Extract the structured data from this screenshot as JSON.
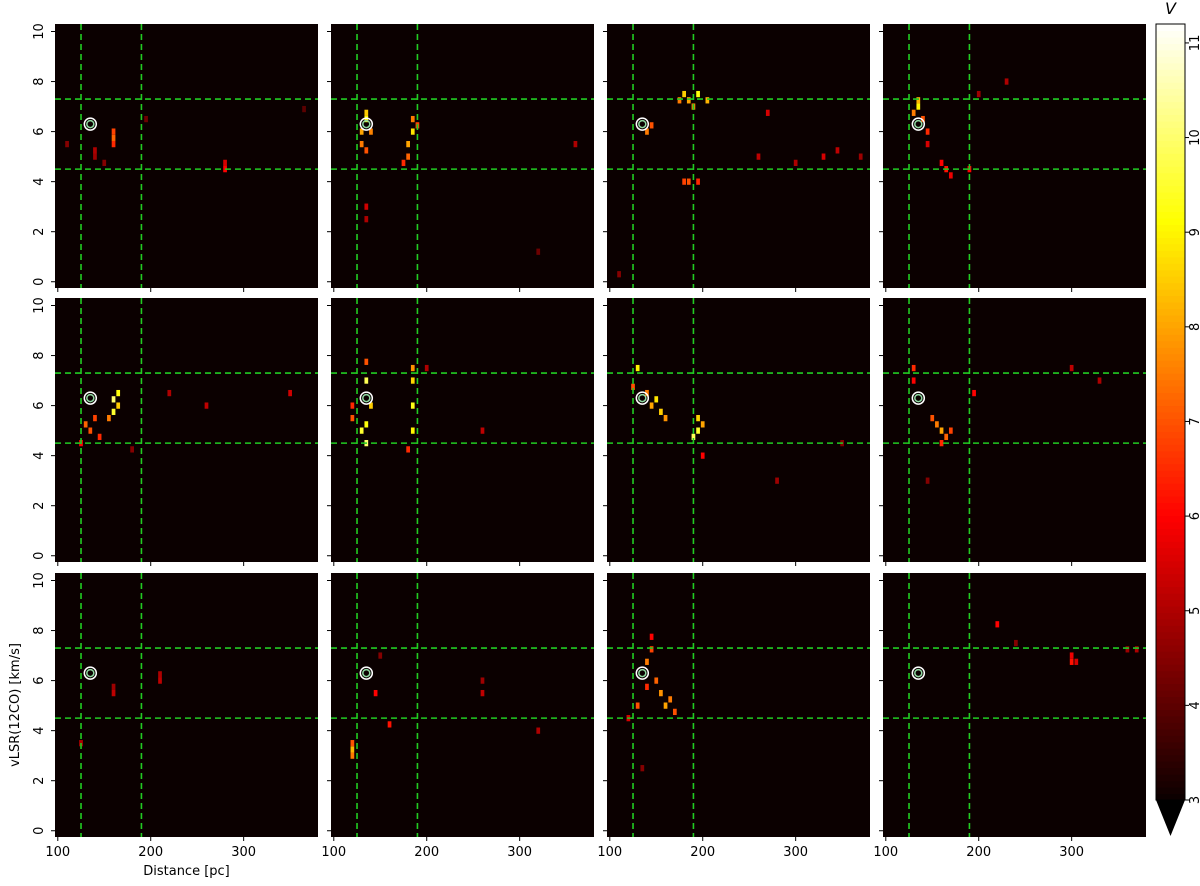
{
  "chart_data": [
    {
      "type": "heatmap",
      "xlim": [
        97,
        380
      ],
      "ylim": [
        -0.25,
        10.3
      ],
      "xticks": [
        100,
        200,
        300
      ],
      "yticks": [
        0,
        2,
        4,
        6,
        8,
        10
      ],
      "vlines": [
        125,
        190
      ],
      "hlines": [
        4.5,
        7.3
      ],
      "line_color": "#22cc22",
      "marker": {
        "x": 135,
        "y": 6.3
      },
      "cells": {
        "x": [
          160,
          160,
          160,
          140,
          140,
          280,
          280,
          110,
          365,
          195,
          150
        ],
        "y": [
          5.5,
          5.75,
          6.0,
          5.0,
          5.25,
          4.5,
          4.75,
          5.5,
          6.9,
          6.5,
          4.75
        ],
        "values": [
          6.5,
          7.2,
          6.8,
          4.8,
          5.0,
          6.0,
          5.5,
          4.5,
          4.0,
          4.2,
          4.5
        ]
      }
    },
    {
      "type": "heatmap",
      "xlim": [
        97,
        380
      ],
      "ylim": [
        -0.25,
        10.3
      ],
      "xticks": [
        100,
        200,
        300
      ],
      "yticks": [
        0,
        2,
        4,
        6,
        8,
        10
      ],
      "vlines": [
        125,
        190
      ],
      "hlines": [
        4.5,
        7.3
      ],
      "line_color": "#22cc22",
      "marker": {
        "x": 135,
        "y": 6.3
      },
      "cells": {
        "x": [
          130,
          130,
          135,
          135,
          135,
          140,
          180,
          180,
          185,
          185,
          175,
          190,
          135,
          135,
          360,
          320
        ],
        "y": [
          5.5,
          6.0,
          6.5,
          6.75,
          5.25,
          6.0,
          5.0,
          5.5,
          6.0,
          6.5,
          4.75,
          6.25,
          2.5,
          3.0,
          5.5,
          1.2
        ],
        "values": [
          7.5,
          8.0,
          9.2,
          8.5,
          7.0,
          7.6,
          7.2,
          8.0,
          8.8,
          7.5,
          6.5,
          6.8,
          5.0,
          5.4,
          5.0,
          4.2
        ]
      }
    },
    {
      "type": "heatmap",
      "xlim": [
        97,
        380
      ],
      "ylim": [
        -0.25,
        10.3
      ],
      "xticks": [
        100,
        200,
        300
      ],
      "yticks": [
        0,
        2,
        4,
        6,
        8,
        10
      ],
      "vlines": [
        125,
        190
      ],
      "hlines": [
        4.5,
        7.3
      ],
      "line_color": "#22cc22",
      "marker": {
        "x": 135,
        "y": 6.3
      },
      "cells": {
        "x": [
          175,
          180,
          185,
          195,
          205,
          190,
          140,
          145,
          180,
          185,
          195,
          260,
          300,
          330,
          345,
          370,
          270,
          110
        ],
        "y": [
          7.25,
          7.5,
          7.25,
          7.5,
          7.25,
          7.0,
          6.0,
          6.25,
          4.0,
          4.0,
          4.0,
          5.0,
          4.75,
          5.0,
          5.25,
          5.0,
          6.75,
          0.3
        ],
        "values": [
          7.5,
          8.5,
          8.0,
          9.2,
          8.2,
          7.5,
          7.5,
          7.0,
          6.8,
          7.0,
          6.5,
          5.2,
          5.0,
          5.5,
          5.2,
          4.8,
          5.5,
          4.5
        ]
      }
    },
    {
      "type": "heatmap",
      "xlim": [
        97,
        380
      ],
      "ylim": [
        -0.25,
        10.3
      ],
      "xticks": [
        100,
        200,
        300
      ],
      "yticks": [
        0,
        2,
        4,
        6,
        8,
        10
      ],
      "vlines": [
        125,
        190
      ],
      "hlines": [
        4.5,
        7.3
      ],
      "line_color": "#22cc22",
      "marker": {
        "x": 135,
        "y": 6.3
      },
      "cells": {
        "x": [
          130,
          135,
          135,
          140,
          145,
          160,
          165,
          170,
          190,
          230,
          200,
          145
        ],
        "y": [
          6.75,
          7.0,
          7.25,
          6.5,
          6.0,
          4.75,
          4.5,
          4.25,
          4.5,
          8.0,
          7.5,
          5.5
        ],
        "values": [
          7.5,
          9.0,
          8.2,
          7.0,
          6.5,
          6.0,
          6.2,
          5.8,
          6.0,
          5.0,
          4.8,
          5.5
        ]
      }
    },
    {
      "type": "heatmap",
      "xlim": [
        97,
        380
      ],
      "ylim": [
        -0.25,
        10.3
      ],
      "xticks": [
        100,
        200,
        300
      ],
      "yticks": [
        0,
        2,
        4,
        6,
        8,
        10
      ],
      "vlines": [
        125,
        190
      ],
      "hlines": [
        4.5,
        7.3
      ],
      "line_color": "#22cc22",
      "marker": {
        "x": 135,
        "y": 6.3
      },
      "cells": {
        "x": [
          160,
          160,
          165,
          165,
          155,
          135,
          140,
          145,
          130,
          125,
          220,
          260,
          350,
          180
        ],
        "y": [
          5.75,
          6.25,
          6.5,
          6.0,
          5.5,
          5.0,
          5.5,
          4.75,
          5.25,
          4.5,
          6.5,
          6.0,
          6.5,
          4.25
        ],
        "values": [
          9.5,
          10.0,
          9.2,
          8.5,
          7.5,
          7.0,
          6.8,
          6.5,
          7.2,
          6.0,
          5.0,
          5.2,
          5.4,
          4.5
        ]
      }
    },
    {
      "type": "heatmap",
      "xlim": [
        97,
        380
      ],
      "ylim": [
        -0.25,
        10.3
      ],
      "xticks": [
        100,
        200,
        300
      ],
      "yticks": [
        0,
        2,
        4,
        6,
        8,
        10
      ],
      "vlines": [
        125,
        190
      ],
      "hlines": [
        4.5,
        7.3
      ],
      "line_color": "#22cc22",
      "marker": {
        "x": 135,
        "y": 6.3
      },
      "cells": {
        "x": [
          130,
          135,
          135,
          135,
          140,
          135,
          185,
          185,
          185,
          180,
          185,
          120,
          120,
          260,
          200
        ],
        "y": [
          5.0,
          4.5,
          5.25,
          7.0,
          6.0,
          7.75,
          5.0,
          6.0,
          7.0,
          4.25,
          7.5,
          5.5,
          6.0,
          5.0,
          7.5
        ],
        "values": [
          9.5,
          10.0,
          9.2,
          9.8,
          8.5,
          7.0,
          9.0,
          9.3,
          8.6,
          6.5,
          7.8,
          7.0,
          6.5,
          5.2,
          5.0
        ]
      }
    },
    {
      "type": "heatmap",
      "xlim": [
        97,
        380
      ],
      "ylim": [
        -0.25,
        10.3
      ],
      "xticks": [
        100,
        200,
        300
      ],
      "yticks": [
        0,
        2,
        4,
        6,
        8,
        10
      ],
      "vlines": [
        125,
        190
      ],
      "hlines": [
        4.5,
        7.3
      ],
      "line_color": "#22cc22",
      "marker": {
        "x": 135,
        "y": 6.3
      },
      "cells": {
        "x": [
          145,
          150,
          155,
          160,
          190,
          195,
          195,
          200,
          130,
          125,
          140,
          200,
          280,
          350
        ],
        "y": [
          6.0,
          6.25,
          5.75,
          5.5,
          4.75,
          5.0,
          5.5,
          5.25,
          7.5,
          6.75,
          6.5,
          4.0,
          3.0,
          4.5
        ],
        "values": [
          8.0,
          8.8,
          8.5,
          7.8,
          9.8,
          9.5,
          8.6,
          8.0,
          9.0,
          7.0,
          7.5,
          6.0,
          4.8,
          4.5
        ]
      }
    },
    {
      "type": "heatmap",
      "xlim": [
        97,
        380
      ],
      "ylim": [
        -0.25,
        10.3
      ],
      "xticks": [
        100,
        200,
        300
      ],
      "yticks": [
        0,
        2,
        4,
        6,
        8,
        10
      ],
      "vlines": [
        125,
        190
      ],
      "hlines": [
        4.5,
        7.3
      ],
      "line_color": "#22cc22",
      "marker": {
        "x": 135,
        "y": 6.3
      },
      "cells": {
        "x": [
          130,
          130,
          150,
          155,
          160,
          165,
          170,
          160,
          195,
          300,
          330,
          145
        ],
        "y": [
          7.0,
          7.5,
          5.5,
          5.25,
          5.0,
          4.75,
          5.0,
          4.5,
          6.5,
          7.5,
          7.0,
          3.0
        ],
        "values": [
          6.0,
          6.5,
          7.0,
          7.5,
          8.0,
          7.2,
          6.8,
          6.5,
          6.0,
          5.2,
          5.0,
          4.5
        ]
      }
    },
    {
      "type": "heatmap",
      "xlim": [
        97,
        380
      ],
      "ylim": [
        -0.25,
        10.3
      ],
      "xticks": [
        100,
        200,
        300
      ],
      "yticks": [
        0,
        2,
        4,
        6,
        8,
        10
      ],
      "vlines": [
        125,
        190
      ],
      "hlines": [
        4.5,
        7.3
      ],
      "line_color": "#22cc22",
      "marker": {
        "x": 135,
        "y": 6.3
      },
      "cells": {
        "x": [
          125,
          160,
          160,
          210,
          210
        ],
        "y": [
          3.5,
          5.5,
          5.75,
          6.0,
          6.25
        ],
        "values": [
          5.0,
          5.2,
          4.8,
          5.2,
          5.0
        ]
      },
      "xlabel": "Distance [pc]",
      "ylabel": "vLSR(12CO) [km/s]"
    },
    {
      "type": "heatmap",
      "xlim": [
        97,
        380
      ],
      "ylim": [
        -0.25,
        10.3
      ],
      "xticks": [
        100,
        200,
        300
      ],
      "yticks": [
        0,
        2,
        4,
        6,
        8,
        10
      ],
      "vlines": [
        125,
        190
      ],
      "hlines": [
        4.5,
        7.3
      ],
      "line_color": "#22cc22",
      "marker": {
        "x": 135,
        "y": 6.3
      },
      "cells": {
        "x": [
          120,
          120,
          120,
          145,
          160,
          260,
          260,
          320,
          150
        ],
        "y": [
          3.0,
          3.25,
          3.5,
          5.5,
          4.25,
          5.5,
          6.0,
          4.0,
          7.0
        ],
        "values": [
          7.5,
          8.2,
          7.0,
          6.0,
          6.2,
          5.2,
          4.8,
          5.0,
          4.5
        ]
      }
    },
    {
      "type": "heatmap",
      "xlim": [
        97,
        380
      ],
      "ylim": [
        -0.25,
        10.3
      ],
      "xticks": [
        100,
        200,
        300
      ],
      "yticks": [
        0,
        2,
        4,
        6,
        8,
        10
      ],
      "vlines": [
        125,
        190
      ],
      "hlines": [
        4.5,
        7.3
      ],
      "line_color": "#22cc22",
      "marker": {
        "x": 135,
        "y": 6.3
      },
      "cells": {
        "x": [
          130,
          140,
          145,
          150,
          155,
          160,
          165,
          170,
          145,
          140,
          120,
          135
        ],
        "y": [
          5.0,
          6.75,
          7.25,
          6.0,
          5.5,
          5.0,
          5.25,
          4.75,
          7.75,
          5.75,
          4.5,
          2.5
        ],
        "values": [
          7.0,
          7.5,
          6.8,
          7.2,
          7.8,
          8.0,
          7.5,
          7.0,
          6.0,
          6.5,
          5.5,
          4.5
        ]
      }
    },
    {
      "type": "heatmap",
      "xlim": [
        97,
        380
      ],
      "ylim": [
        -0.25,
        10.3
      ],
      "xticks": [
        100,
        200,
        300
      ],
      "yticks": [
        0,
        2,
        4,
        6,
        8,
        10
      ],
      "vlines": [
        125,
        190
      ],
      "hlines": [
        4.5,
        7.3
      ],
      "line_color": "#22cc22",
      "marker": {
        "x": 135,
        "y": 6.3
      },
      "cells": {
        "x": [
          220,
          300,
          300,
          305,
          370,
          360,
          240
        ],
        "y": [
          8.25,
          6.75,
          7.0,
          6.75,
          7.25,
          7.25,
          7.5
        ],
        "values": [
          6.0,
          6.2,
          5.8,
          5.5,
          5.0,
          4.8,
          4.5
        ]
      }
    }
  ],
  "colorbar": {
    "label": "V",
    "lim": [
      3,
      11.2
    ],
    "ticks": [
      3,
      4,
      5,
      6,
      7,
      8,
      9,
      10,
      11
    ]
  }
}
